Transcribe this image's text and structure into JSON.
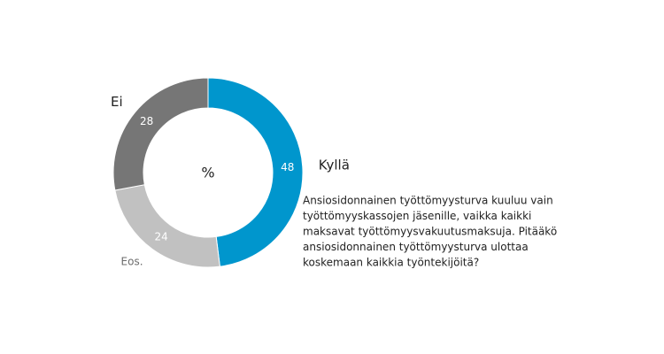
{
  "chart_data": {
    "type": "donut",
    "center_label": "%",
    "categories": [
      "Kyllä",
      "Eos.",
      "Ei"
    ],
    "values": [
      48,
      24,
      28
    ],
    "colors": [
      "#0096cd",
      "#c1c1c1",
      "#767676"
    ],
    "question": [
      "Ansiosidonnainen työttömyysturva kuuluu vain",
      "työttömyyskassojen jäsenille, vaikka kaikki",
      "maksavat työttömyysvakuutusmaksuja. Pitääkö",
      "ansiosidonnainen työttömyysturva ulottaa",
      "koskemaan kaikkia työntekijöitä?"
    ]
  }
}
